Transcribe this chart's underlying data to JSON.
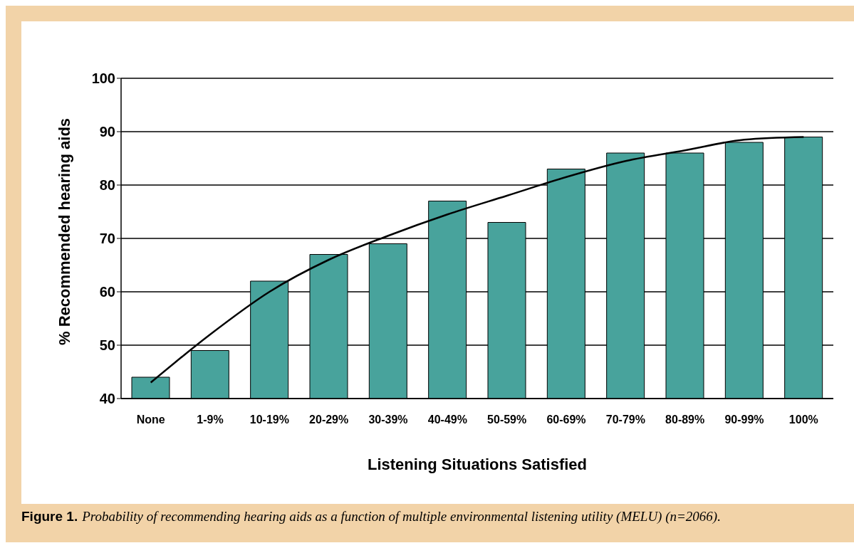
{
  "chart_data": {
    "type": "bar",
    "xlabel": "Listening Situations Satisfied",
    "ylabel": "% Recommended hearing aids",
    "categories": [
      "None",
      "1-9%",
      "10-19%",
      "20-29%",
      "30-39%",
      "40-49%",
      "50-59%",
      "60-69%",
      "70-79%",
      "80-89%",
      "90-99%",
      "100%"
    ],
    "series": [
      {
        "color": "#48a39c",
        "values": [
          44,
          49,
          62,
          67,
          69,
          77,
          73,
          83,
          86,
          86,
          88,
          89
        ]
      },
      {
        "type": "line",
        "color": "#000000",
        "values": [
          43,
          52,
          60,
          66,
          70.5,
          74.5,
          78,
          81.5,
          84.5,
          86.5,
          88.5,
          89
        ]
      }
    ],
    "ylim": [
      40,
      100
    ],
    "yticks": [
      40,
      50,
      60,
      70,
      80,
      90,
      100
    ],
    "grid": "y",
    "legend": false,
    "marker": "none",
    "annotations": [
      "Figure 1.",
      "Probability of recommending hearing aids as a function of multiple environmental listening utility (MELU) (n=2066)."
    ]
  }
}
